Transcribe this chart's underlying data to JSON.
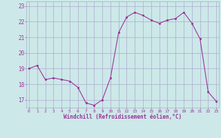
{
  "x": [
    0,
    1,
    2,
    3,
    4,
    5,
    6,
    7,
    8,
    9,
    10,
    11,
    12,
    13,
    14,
    15,
    16,
    17,
    18,
    19,
    20,
    21,
    22,
    23
  ],
  "y": [
    19.0,
    19.2,
    18.3,
    18.4,
    18.3,
    18.2,
    17.8,
    16.8,
    16.65,
    17.0,
    18.4,
    21.3,
    22.3,
    22.6,
    22.4,
    22.1,
    21.9,
    22.1,
    22.2,
    22.6,
    21.9,
    20.9,
    17.5,
    16.9
  ],
  "line_color": "#993399",
  "marker": "s",
  "marker_size": 2.0,
  "bg_color": "#cce8e8",
  "grid_color": "#aaaacc",
  "xlabel": "Windchill (Refroidissement éolien,°C)",
  "xlabel_color": "#993399",
  "tick_color": "#993399",
  "ylim": [
    16.5,
    23.3
  ],
  "yticks": [
    17,
    18,
    19,
    20,
    21,
    22,
    23
  ],
  "xticks": [
    0,
    1,
    2,
    3,
    4,
    5,
    6,
    7,
    8,
    9,
    10,
    11,
    12,
    13,
    14,
    15,
    16,
    17,
    18,
    19,
    20,
    21,
    22,
    23
  ],
  "xlim": [
    -0.3,
    23.3
  ]
}
